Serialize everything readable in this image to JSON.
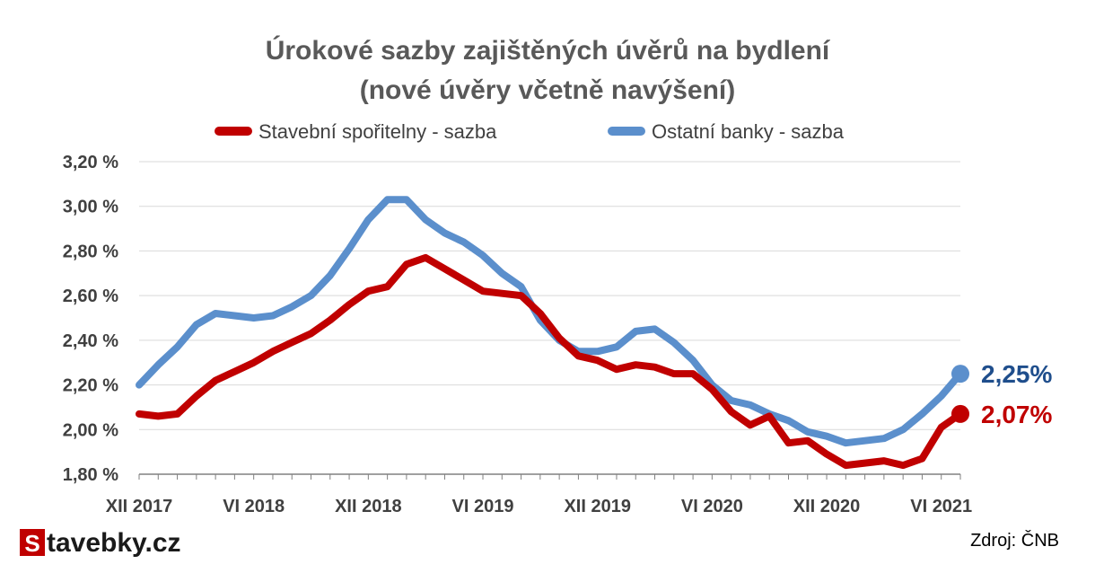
{
  "chart_data": {
    "type": "line",
    "title": "Úrokové sazby zajištěných úvěrů na bydlení",
    "subtitle": "(nové úvěry včetně navýšení)",
    "ylim": [
      1.8,
      3.2
    ],
    "yticks": [
      1.8,
      2.0,
      2.2,
      2.4,
      2.6,
      2.8,
      3.0,
      3.2
    ],
    "ytick_labels": [
      "1,80 %",
      "2,00 %",
      "2,20 %",
      "2,40 %",
      "2,60 %",
      "2,80 %",
      "3,00 %",
      "3,20 %"
    ],
    "x_tick_labels": [
      {
        "index": 0,
        "label": "XII 2017"
      },
      {
        "index": 6,
        "label": "VI 2018"
      },
      {
        "index": 12,
        "label": "XII 2018"
      },
      {
        "index": 18,
        "label": "VI 2019"
      },
      {
        "index": 24,
        "label": "XII 2019"
      },
      {
        "index": 30,
        "label": "VI 2020"
      },
      {
        "index": 36,
        "label": "XII 2020"
      },
      {
        "index": 42,
        "label": "VI 2021"
      }
    ],
    "x": [
      "XII 2017",
      "I 2018",
      "II 2018",
      "III 2018",
      "IV 2018",
      "V 2018",
      "VI 2018",
      "VII 2018",
      "VIII 2018",
      "IX 2018",
      "X 2018",
      "XI 2018",
      "XII 2018",
      "I 2019",
      "II 2019",
      "III 2019",
      "IV 2019",
      "V 2019",
      "VI 2019",
      "VII 2019",
      "VIII 2019",
      "IX 2019",
      "X 2019",
      "XI 2019",
      "XII 2019",
      "I 2020",
      "II 2020",
      "III 2020",
      "IV 2020",
      "V 2020",
      "VI 2020",
      "VII 2020",
      "VIII 2020",
      "IX 2020",
      "X 2020",
      "XI 2020",
      "XII 2020",
      "I 2021",
      "II 2021",
      "III 2021",
      "IV 2021",
      "V 2021",
      "VI 2021",
      "VII 2021"
    ],
    "series": [
      {
        "name": "Stavební spořitelny - sazba",
        "color": "#c00000",
        "values": [
          2.07,
          2.06,
          2.07,
          2.15,
          2.22,
          2.26,
          2.3,
          2.35,
          2.39,
          2.43,
          2.49,
          2.56,
          2.62,
          2.64,
          2.74,
          2.77,
          2.72,
          2.67,
          2.62,
          2.61,
          2.6,
          2.52,
          2.41,
          2.33,
          2.31,
          2.27,
          2.29,
          2.28,
          2.25,
          2.25,
          2.18,
          2.08,
          2.02,
          2.06,
          1.94,
          1.95,
          1.89,
          1.84,
          1.85,
          1.86,
          1.84,
          1.87,
          2.01,
          2.07
        ],
        "end_label": "2,07%"
      },
      {
        "name": "Ostatní banky - sazba",
        "color": "#5b8fcc",
        "values": [
          2.2,
          2.29,
          2.37,
          2.47,
          2.52,
          2.51,
          2.5,
          2.51,
          2.55,
          2.6,
          2.69,
          2.81,
          2.94,
          3.03,
          3.03,
          2.94,
          2.88,
          2.84,
          2.78,
          2.7,
          2.64,
          2.49,
          2.4,
          2.35,
          2.35,
          2.37,
          2.44,
          2.45,
          2.39,
          2.31,
          2.2,
          2.13,
          2.11,
          2.07,
          2.04,
          1.99,
          1.97,
          1.94,
          1.95,
          1.96,
          2.0,
          2.07,
          2.15,
          2.25
        ],
        "end_label": "2,25%"
      }
    ],
    "grid": true,
    "legend_position": "top",
    "end_label_colors": {
      "Stavební spořitelny - sazba": "#c00000",
      "Ostatní banky - sazba": "#1f4e8c"
    }
  },
  "brand": {
    "letter": "S",
    "rest": "tavebky.cz",
    "letter_bg": "#c00000"
  },
  "source": "Zdroj: ČNB"
}
